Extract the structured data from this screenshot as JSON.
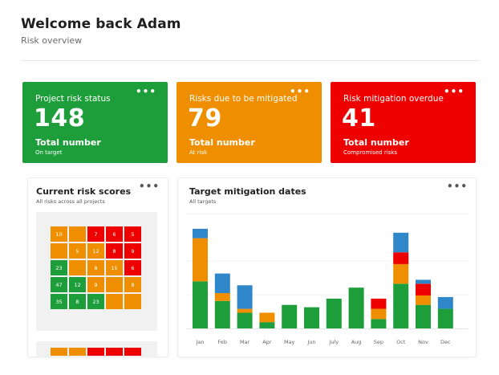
{
  "header": {
    "title": "Welcome back Adam",
    "subtitle": "Risk overview"
  },
  "colors": {
    "green": "#1e9e3a",
    "orange": "#ef8f00",
    "red": "#ee0000",
    "blue": "#2f86c8"
  },
  "stats": [
    {
      "label": "Project risk status",
      "value": "148",
      "total_label": "Total number",
      "sub": "On target",
      "color": "#1e9e3a",
      "menu_icon": "ellipsis-icon"
    },
    {
      "label": "Risks due to be mitigated",
      "value": "79",
      "total_label": "Total number",
      "sub": "At risk",
      "color": "#ef8f00",
      "menu_icon": "ellipsis-icon"
    },
    {
      "label": "Risk mitigation overdue",
      "value": "41",
      "total_label": "Total number",
      "sub": "Compromised risks",
      "color": "#ee0000",
      "menu_icon": "ellipsis-icon"
    }
  ],
  "risk_scores": {
    "title": "Current risk scores",
    "subtitle": "All risks across all projects",
    "rows": [
      [
        {
          "v": "10",
          "c": "o"
        },
        {
          "v": "",
          "c": "o"
        },
        {
          "v": "7",
          "c": "r"
        },
        {
          "v": "6",
          "c": "r"
        },
        {
          "v": "5",
          "c": "r"
        }
      ],
      [
        {
          "v": "",
          "c": "o"
        },
        {
          "v": "5",
          "c": "o"
        },
        {
          "v": "12",
          "c": "o"
        },
        {
          "v": "8",
          "c": "r"
        },
        {
          "v": "9",
          "c": "r"
        }
      ],
      [
        {
          "v": "23",
          "c": "g"
        },
        {
          "v": "",
          "c": "o"
        },
        {
          "v": "8",
          "c": "o"
        },
        {
          "v": "15",
          "c": "o"
        },
        {
          "v": "6",
          "c": "r"
        }
      ],
      [
        {
          "v": "47",
          "c": "g"
        },
        {
          "v": "12",
          "c": "g"
        },
        {
          "v": "9",
          "c": "o"
        },
        {
          "v": "",
          "c": "o"
        },
        {
          "v": "8",
          "c": "o"
        }
      ],
      [
        {
          "v": "35",
          "c": "g"
        },
        {
          "v": "8",
          "c": "g"
        },
        {
          "v": "23",
          "c": "g"
        },
        {
          "v": "",
          "c": "o"
        },
        {
          "v": "",
          "c": "o"
        }
      ]
    ],
    "next_row": [
      "o",
      "o",
      "r",
      "r",
      "r"
    ]
  },
  "chart_data": {
    "type": "bar",
    "title": "Target mitigation dates",
    "subtitle": "All targets",
    "categories": [
      "Jan",
      "Feb",
      "Mar",
      "Apr",
      "May",
      "Jun",
      "July",
      "Aug",
      "Sep",
      "Oct",
      "Nov",
      "Dec"
    ],
    "stacked": true,
    "ylim": [
      0,
      130
    ],
    "series": [
      {
        "name": "green",
        "color": "#1e9e3a",
        "values": [
          60,
          35,
          20,
          8,
          30,
          27,
          38,
          52,
          12,
          57,
          30,
          25
        ]
      },
      {
        "name": "orange",
        "color": "#ef8f00",
        "values": [
          55,
          10,
          5,
          12,
          0,
          0,
          0,
          0,
          13,
          25,
          12,
          0
        ]
      },
      {
        "name": "red",
        "color": "#ee0000",
        "values": [
          0,
          0,
          0,
          0,
          0,
          0,
          0,
          0,
          13,
          15,
          15,
          0
        ]
      },
      {
        "name": "blue",
        "color": "#2f86c8",
        "values": [
          12,
          25,
          30,
          0,
          0,
          0,
          0,
          0,
          0,
          25,
          5,
          15
        ]
      }
    ],
    "menu_icon": "ellipsis-icon"
  }
}
